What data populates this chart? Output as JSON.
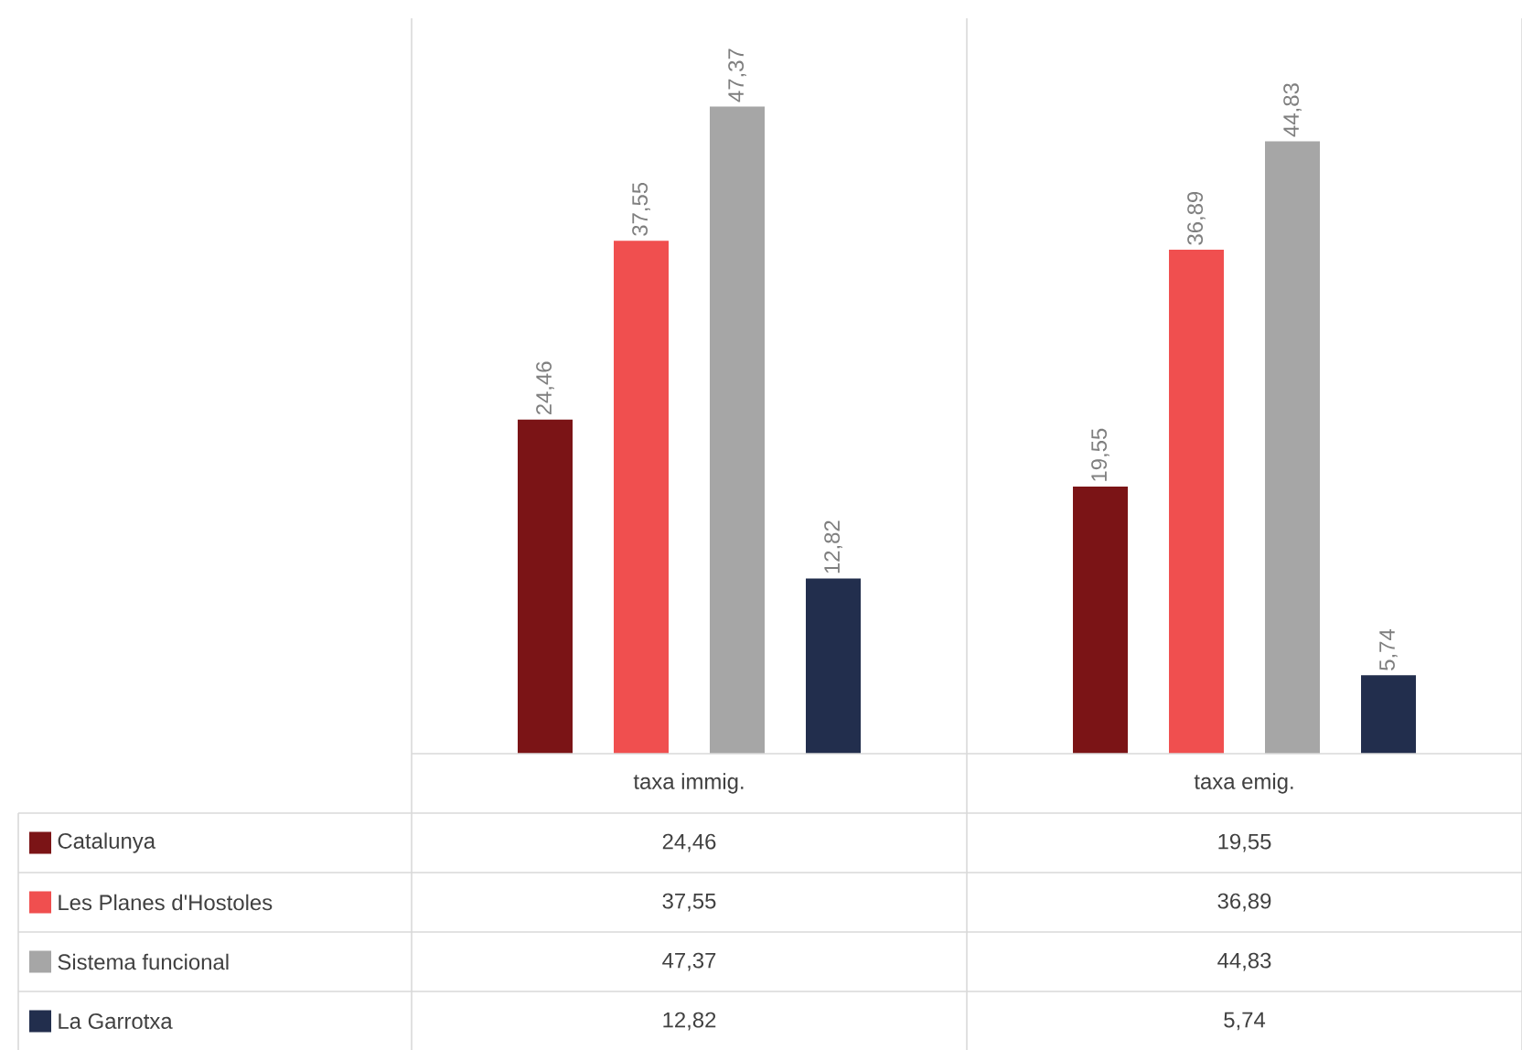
{
  "chart_data": {
    "type": "bar",
    "categories": [
      "taxa immig.",
      "taxa emig."
    ],
    "series": [
      {
        "name": "Catalunya",
        "color": "#7b1416",
        "values": [
          24.46,
          19.55
        ],
        "value_labels": [
          "24,46",
          "19,55"
        ]
      },
      {
        "name": "Les Planes d'Hostoles",
        "color": "#f04f4f",
        "values": [
          37.55,
          36.89
        ],
        "value_labels": [
          "37,55",
          "36,89"
        ]
      },
      {
        "name": "Sistema funcional",
        "color": "#a6a6a6",
        "values": [
          47.37,
          44.83
        ],
        "value_labels": [
          "47,37",
          "44,83"
        ]
      },
      {
        "name": "La Garrotxa",
        "color": "#222e4d",
        "values": [
          12.82,
          5.74
        ],
        "value_labels": [
          "12,82",
          "5,74"
        ]
      }
    ],
    "legend": "bottom"
  }
}
